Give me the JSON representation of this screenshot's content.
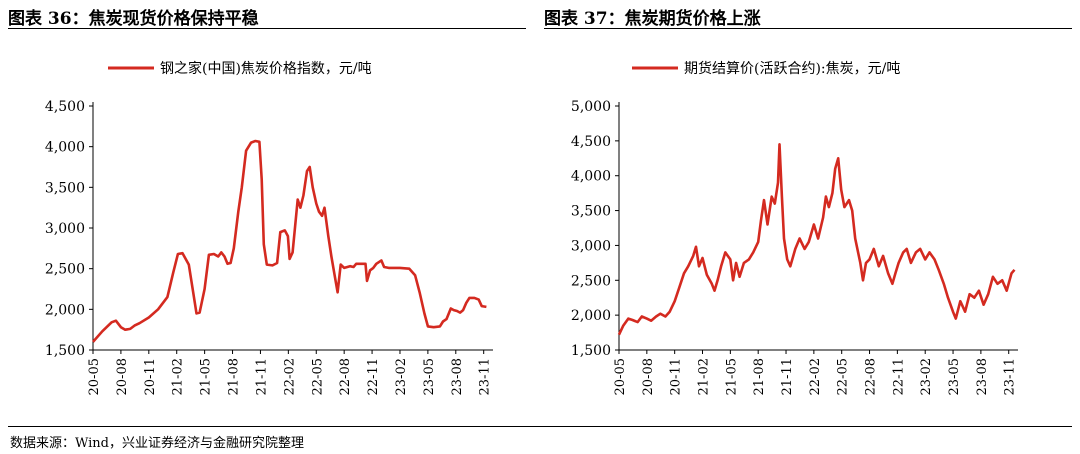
{
  "titles": {
    "left": "图表 36：焦炭现货价格保持平稳",
    "right": "图表 37：焦炭期货价格上涨"
  },
  "source": "数据来源：Wind，兴业证券经济与金融研究院整理",
  "chart_data": [
    {
      "type": "line",
      "title": "图表 36：焦炭现货价格保持平稳",
      "legend": "钢之家(中国)焦炭价格指数，元/吨",
      "legend_position": "top",
      "grid": false,
      "color": "#d42a20",
      "x_range": [
        "2020-05",
        "2023-12"
      ],
      "x_ticks": [
        "20-05",
        "20-08",
        "20-11",
        "21-02",
        "21-05",
        "21-08",
        "21-11",
        "22-02",
        "22-05",
        "22-08",
        "22-11",
        "23-02",
        "23-05",
        "23-08",
        "23-11"
      ],
      "y_ticks": [
        "1,500",
        "2,000",
        "2,500",
        "3,000",
        "3,500",
        "4,000",
        "4,500"
      ],
      "ylim": [
        1500,
        4500
      ],
      "series": [
        {
          "name": "钢之家(中国)焦炭价格指数，元/吨",
          "points": [
            [
              "2020-05-01",
              1600
            ],
            [
              "2020-06-01",
              1730
            ],
            [
              "2020-07-01",
              1840
            ],
            [
              "2020-07-15",
              1860
            ],
            [
              "2020-08-01",
              1780
            ],
            [
              "2020-08-15",
              1750
            ],
            [
              "2020-09-01",
              1760
            ],
            [
              "2020-09-15",
              1800
            ],
            [
              "2020-10-01",
              1830
            ],
            [
              "2020-11-01",
              1900
            ],
            [
              "2020-12-01",
              2000
            ],
            [
              "2021-01-01",
              2150
            ],
            [
              "2021-01-20",
              2450
            ],
            [
              "2021-02-05",
              2680
            ],
            [
              "2021-02-20",
              2690
            ],
            [
              "2021-03-10",
              2550
            ],
            [
              "2021-03-25",
              2200
            ],
            [
              "2021-04-05",
              1950
            ],
            [
              "2021-04-15",
              1960
            ],
            [
              "2021-05-01",
              2250
            ],
            [
              "2021-05-15",
              2670
            ],
            [
              "2021-06-01",
              2680
            ],
            [
              "2021-06-15",
              2650
            ],
            [
              "2021-06-25",
              2700
            ],
            [
              "2021-07-05",
              2650
            ],
            [
              "2021-07-15",
              2560
            ],
            [
              "2021-07-25",
              2570
            ],
            [
              "2021-08-05",
              2750
            ],
            [
              "2021-08-20",
              3200
            ],
            [
              "2021-09-01",
              3500
            ],
            [
              "2021-09-15",
              3950
            ],
            [
              "2021-10-01",
              4050
            ],
            [
              "2021-10-15",
              4070
            ],
            [
              "2021-10-28",
              4060
            ],
            [
              "2021-11-05",
              3600
            ],
            [
              "2021-11-12",
              2800
            ],
            [
              "2021-11-22",
              2550
            ],
            [
              "2021-12-10",
              2540
            ],
            [
              "2021-12-25",
              2570
            ],
            [
              "2022-01-05",
              2950
            ],
            [
              "2022-01-20",
              2970
            ],
            [
              "2022-01-30",
              2900
            ],
            [
              "2022-02-05",
              2620
            ],
            [
              "2022-02-15",
              2700
            ],
            [
              "2022-03-01",
              3350
            ],
            [
              "2022-03-10",
              3250
            ],
            [
              "2022-03-20",
              3400
            ],
            [
              "2022-04-01",
              3700
            ],
            [
              "2022-04-10",
              3750
            ],
            [
              "2022-04-20",
              3500
            ],
            [
              "2022-05-01",
              3300
            ],
            [
              "2022-05-10",
              3200
            ],
            [
              "2022-05-20",
              3150
            ],
            [
              "2022-05-28",
              3250
            ],
            [
              "2022-06-10",
              2900
            ],
            [
              "2022-06-20",
              2650
            ],
            [
              "2022-07-01",
              2400
            ],
            [
              "2022-07-10",
              2210
            ],
            [
              "2022-07-20",
              2550
            ],
            [
              "2022-08-01",
              2510
            ],
            [
              "2022-08-20",
              2530
            ],
            [
              "2022-09-01",
              2520
            ],
            [
              "2022-09-10",
              2560
            ],
            [
              "2022-09-25",
              2560
            ],
            [
              "2022-10-10",
              2560
            ],
            [
              "2022-10-15",
              2350
            ],
            [
              "2022-10-25",
              2480
            ],
            [
              "2022-11-05",
              2510
            ],
            [
              "2022-11-15",
              2560
            ],
            [
              "2022-12-01",
              2600
            ],
            [
              "2022-12-10",
              2520
            ],
            [
              "2022-12-25",
              2510
            ],
            [
              "2023-02-01",
              2510
            ],
            [
              "2023-03-01",
              2500
            ],
            [
              "2023-03-20",
              2420
            ],
            [
              "2023-04-05",
              2200
            ],
            [
              "2023-04-20",
              1950
            ],
            [
              "2023-05-01",
              1790
            ],
            [
              "2023-05-20",
              1780
            ],
            [
              "2023-06-10",
              1790
            ],
            [
              "2023-06-20",
              1850
            ],
            [
              "2023-07-01",
              1880
            ],
            [
              "2023-07-15",
              2010
            ],
            [
              "2023-07-25",
              1990
            ],
            [
              "2023-08-05",
              1980
            ],
            [
              "2023-08-15",
              1960
            ],
            [
              "2023-08-25",
              1990
            ],
            [
              "2023-09-05",
              2080
            ],
            [
              "2023-09-15",
              2140
            ],
            [
              "2023-10-01",
              2140
            ],
            [
              "2023-10-15",
              2120
            ],
            [
              "2023-10-25",
              2040
            ],
            [
              "2023-11-10",
              2030
            ]
          ]
        }
      ]
    },
    {
      "type": "line",
      "title": "图表 37：焦炭期货价格上涨",
      "legend": "期货结算价(活跃合约):焦炭，元/吨",
      "legend_position": "top",
      "grid": false,
      "color": "#d42a20",
      "x_range": [
        "2020-05",
        "2023-12"
      ],
      "x_ticks": [
        "20-05",
        "20-08",
        "20-11",
        "21-02",
        "21-05",
        "21-08",
        "21-11",
        "22-02",
        "22-05",
        "22-08",
        "22-11",
        "23-02",
        "23-05",
        "23-08",
        "23-11"
      ],
      "y_ticks": [
        "1,500",
        "2,000",
        "2,500",
        "3,000",
        "3,500",
        "4,000",
        "4,500",
        "5,000"
      ],
      "ylim": [
        1500,
        5000
      ],
      "series": [
        {
          "name": "期货结算价(活跃合约):焦炭，元/吨",
          "points": [
            [
              "2020-05-01",
              1720
            ],
            [
              "2020-05-15",
              1850
            ],
            [
              "2020-06-01",
              1950
            ],
            [
              "2020-06-15",
              1930
            ],
            [
              "2020-07-01",
              1900
            ],
            [
              "2020-07-15",
              1980
            ],
            [
              "2020-08-01",
              1950
            ],
            [
              "2020-08-15",
              1920
            ],
            [
              "2020-09-01",
              1980
            ],
            [
              "2020-09-15",
              2020
            ],
            [
              "2020-10-01",
              1980
            ],
            [
              "2020-10-15",
              2050
            ],
            [
              "2020-11-01",
              2200
            ],
            [
              "2020-11-15",
              2380
            ],
            [
              "2020-12-01",
              2600
            ],
            [
              "2020-12-15",
              2700
            ],
            [
              "2021-01-01",
              2850
            ],
            [
              "2021-01-10",
              2980
            ],
            [
              "2021-01-20",
              2700
            ],
            [
              "2021-02-01",
              2820
            ],
            [
              "2021-02-15",
              2580
            ],
            [
              "2021-03-01",
              2450
            ],
            [
              "2021-03-10",
              2350
            ],
            [
              "2021-03-20",
              2500
            ],
            [
              "2021-04-01",
              2700
            ],
            [
              "2021-04-15",
              2900
            ],
            [
              "2021-05-01",
              2800
            ],
            [
              "2021-05-10",
              2500
            ],
            [
              "2021-05-20",
              2750
            ],
            [
              "2021-06-01",
              2550
            ],
            [
              "2021-06-15",
              2750
            ],
            [
              "2021-07-01",
              2800
            ],
            [
              "2021-07-15",
              2900
            ],
            [
              "2021-08-01",
              3050
            ],
            [
              "2021-08-10",
              3350
            ],
            [
              "2021-08-20",
              3650
            ],
            [
              "2021-09-01",
              3300
            ],
            [
              "2021-09-15",
              3700
            ],
            [
              "2021-09-25",
              3600
            ],
            [
              "2021-10-05",
              3900
            ],
            [
              "2021-10-10",
              4450
            ],
            [
              "2021-10-18",
              3700
            ],
            [
              "2021-10-25",
              3100
            ],
            [
              "2021-11-05",
              2800
            ],
            [
              "2021-11-15",
              2700
            ],
            [
              "2021-12-01",
              2950
            ],
            [
              "2021-12-15",
              3100
            ],
            [
              "2022-01-01",
              2950
            ],
            [
              "2022-01-15",
              3050
            ],
            [
              "2022-02-01",
              3300
            ],
            [
              "2022-02-15",
              3100
            ],
            [
              "2022-03-01",
              3400
            ],
            [
              "2022-03-10",
              3700
            ],
            [
              "2022-03-20",
              3550
            ],
            [
              "2022-04-01",
              3750
            ],
            [
              "2022-04-10",
              4100
            ],
            [
              "2022-04-20",
              4250
            ],
            [
              "2022-04-30",
              3800
            ],
            [
              "2022-05-10",
              3550
            ],
            [
              "2022-05-25",
              3650
            ],
            [
              "2022-06-05",
              3500
            ],
            [
              "2022-06-15",
              3100
            ],
            [
              "2022-07-01",
              2750
            ],
            [
              "2022-07-10",
              2500
            ],
            [
              "2022-07-20",
              2750
            ],
            [
              "2022-08-01",
              2800
            ],
            [
              "2022-08-15",
              2950
            ],
            [
              "2022-09-01",
              2700
            ],
            [
              "2022-09-15",
              2850
            ],
            [
              "2022-10-01",
              2600
            ],
            [
              "2022-10-15",
              2450
            ],
            [
              "2022-10-25",
              2600
            ],
            [
              "2022-11-05",
              2750
            ],
            [
              "2022-11-20",
              2900
            ],
            [
              "2022-12-01",
              2950
            ],
            [
              "2022-12-15",
              2750
            ],
            [
              "2023-01-01",
              2900
            ],
            [
              "2023-01-15",
              2950
            ],
            [
              "2023-02-01",
              2800
            ],
            [
              "2023-02-15",
              2900
            ],
            [
              "2023-03-01",
              2800
            ],
            [
              "2023-03-15",
              2650
            ],
            [
              "2023-04-01",
              2450
            ],
            [
              "2023-04-15",
              2250
            ],
            [
              "2023-05-01",
              2050
            ],
            [
              "2023-05-10",
              1950
            ],
            [
              "2023-05-25",
              2200
            ],
            [
              "2023-06-10",
              2050
            ],
            [
              "2023-06-25",
              2300
            ],
            [
              "2023-07-10",
              2250
            ],
            [
              "2023-07-25",
              2350
            ],
            [
              "2023-08-10",
              2150
            ],
            [
              "2023-08-25",
              2300
            ],
            [
              "2023-09-10",
              2550
            ],
            [
              "2023-09-25",
              2450
            ],
            [
              "2023-10-10",
              2500
            ],
            [
              "2023-10-25",
              2350
            ],
            [
              "2023-11-10",
              2600
            ],
            [
              "2023-11-20",
              2650
            ]
          ]
        }
      ]
    }
  ]
}
